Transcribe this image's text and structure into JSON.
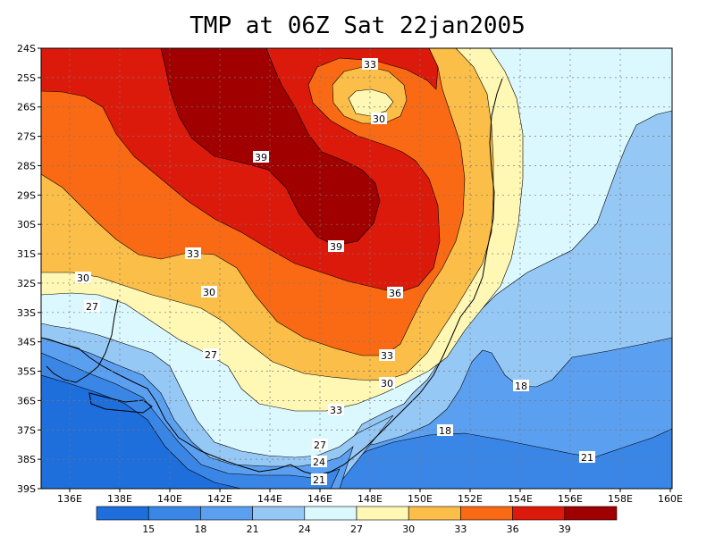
{
  "title": "TMP at 06Z Sat 22jan2005",
  "map": {
    "lat_ticks": [
      "24S",
      "25S",
      "26S",
      "27S",
      "28S",
      "29S",
      "30S",
      "31S",
      "32S",
      "33S",
      "34S",
      "35S",
      "36S",
      "37S",
      "38S",
      "39S"
    ],
    "lon_ticks": [
      "136E",
      "138E",
      "140E",
      "142E",
      "144E",
      "146E",
      "148E",
      "150E",
      "152E",
      "154E",
      "156E",
      "158E",
      "160E"
    ],
    "contour_labels": [
      "33",
      "30",
      "39",
      "39",
      "33",
      "36",
      "30",
      "33",
      "30",
      "27",
      "27",
      "30",
      "33",
      "27",
      "24",
      "21",
      "18",
      "18",
      "21",
      "18"
    ]
  },
  "colorbar": {
    "labels": [
      "15",
      "18",
      "21",
      "24",
      "27",
      "30",
      "33",
      "36",
      "39"
    ],
    "colors": [
      "#1e6edc",
      "#3a86e6",
      "#5ba0f0",
      "#96c8f6",
      "#dcf8ff",
      "#fff7b4",
      "#fbbe48",
      "#fa6a14",
      "#dc1a0c",
      "#a00000"
    ]
  }
}
